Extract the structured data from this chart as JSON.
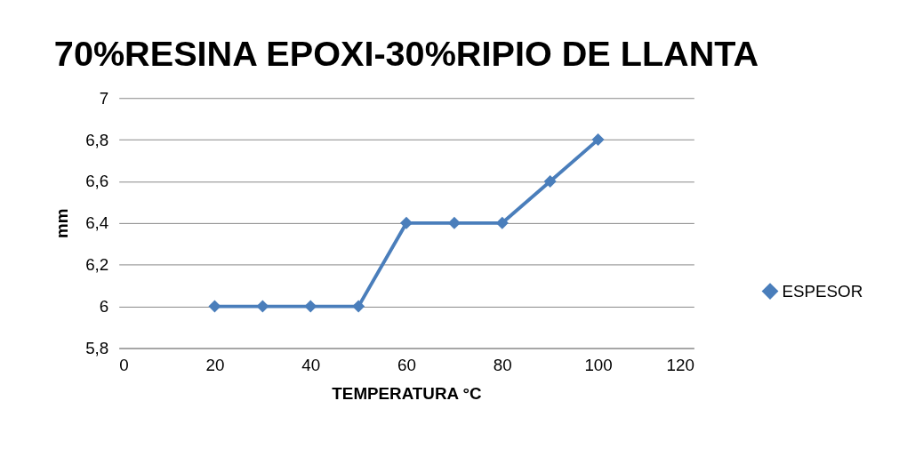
{
  "chart_data": {
    "type": "line",
    "title": "70%RESINA EPOXI-30%RIPIO DE LLANTA",
    "xlabel": "TEMPERATURA °C",
    "ylabel": "mm",
    "x": [
      20,
      30,
      40,
      50,
      60,
      70,
      80,
      90,
      100
    ],
    "series": [
      {
        "name": "ESPESOR",
        "color": "#4a7ebb",
        "values": [
          6,
          6,
          6,
          6,
          6.4,
          6.4,
          6.4,
          6.6,
          6.8
        ]
      }
    ],
    "xlim": [
      0,
      120
    ],
    "xticks": [
      0,
      20,
      40,
      60,
      80,
      100,
      120
    ],
    "ylim": [
      5.8,
      7
    ],
    "yticks": [
      {
        "value": 5.8,
        "label": "5,8"
      },
      6,
      {
        "value": 6.2,
        "label": "6,2"
      },
      {
        "value": 6.4,
        "label": "6,4"
      },
      {
        "value": 6.6,
        "label": "6,6"
      },
      {
        "value": 6.8,
        "label": "6,8"
      },
      7
    ],
    "grid": "y",
    "legend": "right",
    "marker": "diamond",
    "line_style": "solid"
  }
}
